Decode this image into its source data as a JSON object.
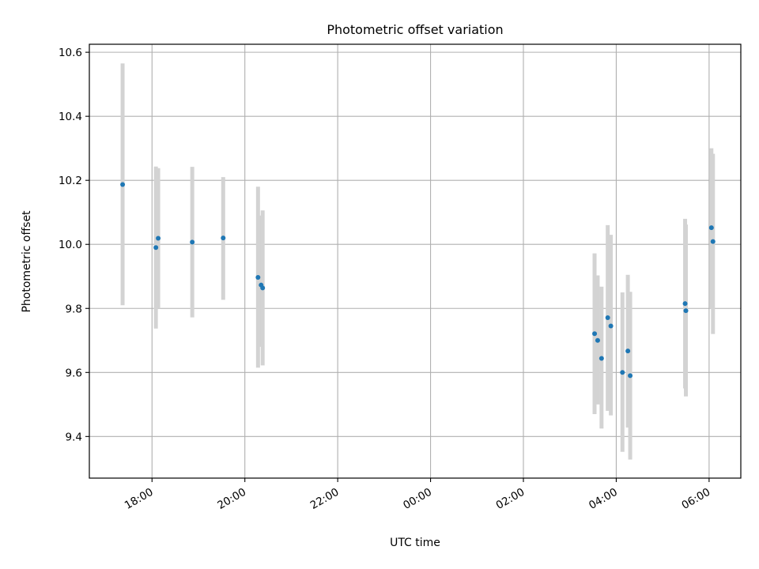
{
  "chart_data": {
    "type": "scatter",
    "title": "Photometric offset variation",
    "xlabel": "UTC time",
    "ylabel": "Photometric offset",
    "x_axis_type": "time",
    "xlim": [
      "2000-01-01T16:39",
      "2000-01-02T06:41"
    ],
    "ylim": [
      9.27,
      10.625
    ],
    "x_ticks": [
      {
        "label": "18:00",
        "value": "2000-01-01T18:00"
      },
      {
        "label": "20:00",
        "value": "2000-01-01T20:00"
      },
      {
        "label": "22:00",
        "value": "2000-01-01T22:00"
      },
      {
        "label": "00:00",
        "value": "2000-01-02T00:00"
      },
      {
        "label": "02:00",
        "value": "2000-01-02T02:00"
      },
      {
        "label": "04:00",
        "value": "2000-01-02T04:00"
      },
      {
        "label": "06:00",
        "value": "2000-01-02T06:00"
      }
    ],
    "y_ticks": [
      {
        "label": "9.4",
        "value": 9.4
      },
      {
        "label": "9.6",
        "value": 9.6
      },
      {
        "label": "9.8",
        "value": 9.8
      },
      {
        "label": "10.0",
        "value": 10.0
      },
      {
        "label": "10.2",
        "value": 10.2
      },
      {
        "label": "10.4",
        "value": 10.4
      },
      {
        "label": "10.6",
        "value": 10.6
      }
    ],
    "grid": true,
    "point_color": "#1f77b4",
    "errorbar_color": "#d3d3d3",
    "points": [
      {
        "x": "2000-01-01T17:22",
        "y": 10.187,
        "err_low": 9.81,
        "err_high": 10.565
      },
      {
        "x": "2000-01-01T18:05",
        "y": 9.99,
        "err_low": 9.737,
        "err_high": 10.243
      },
      {
        "x": "2000-01-01T18:08",
        "y": 10.019,
        "err_low": 9.8,
        "err_high": 10.238
      },
      {
        "x": "2000-01-01T18:52",
        "y": 10.007,
        "err_low": 9.772,
        "err_high": 10.242
      },
      {
        "x": "2000-01-01T19:32",
        "y": 10.02,
        "err_low": 9.827,
        "err_high": 10.21
      },
      {
        "x": "2000-01-01T20:17",
        "y": 9.897,
        "err_low": 9.615,
        "err_high": 10.18
      },
      {
        "x": "2000-01-01T20:21",
        "y": 9.873,
        "err_low": 9.68,
        "err_high": 10.09
      },
      {
        "x": "2000-01-01T20:23",
        "y": 9.864,
        "err_low": 9.622,
        "err_high": 10.106
      },
      {
        "x": "2000-01-02T03:32",
        "y": 9.721,
        "err_low": 9.47,
        "err_high": 9.972
      },
      {
        "x": "2000-01-02T03:36",
        "y": 9.7,
        "err_low": 9.5,
        "err_high": 9.903
      },
      {
        "x": "2000-01-02T03:41",
        "y": 9.644,
        "err_low": 9.425,
        "err_high": 9.868
      },
      {
        "x": "2000-01-02T03:49",
        "y": 9.771,
        "err_low": 9.48,
        "err_high": 10.06
      },
      {
        "x": "2000-01-02T03:53",
        "y": 9.745,
        "err_low": 9.466,
        "err_high": 10.03
      },
      {
        "x": "2000-01-02T04:08",
        "y": 9.6,
        "err_low": 9.352,
        "err_high": 9.85
      },
      {
        "x": "2000-01-02T04:15",
        "y": 9.667,
        "err_low": 9.428,
        "err_high": 9.905
      },
      {
        "x": "2000-01-02T04:18",
        "y": 9.59,
        "err_low": 9.328,
        "err_high": 9.852
      },
      {
        "x": "2000-01-02T05:29",
        "y": 9.815,
        "err_low": 9.55,
        "err_high": 10.08
      },
      {
        "x": "2000-01-02T05:30",
        "y": 9.793,
        "err_low": 9.525,
        "err_high": 10.062
      },
      {
        "x": "2000-01-02T06:03",
        "y": 10.052,
        "err_low": 9.8,
        "err_high": 10.3
      },
      {
        "x": "2000-01-02T06:05",
        "y": 10.009,
        "err_low": 9.72,
        "err_high": 10.283
      }
    ]
  }
}
